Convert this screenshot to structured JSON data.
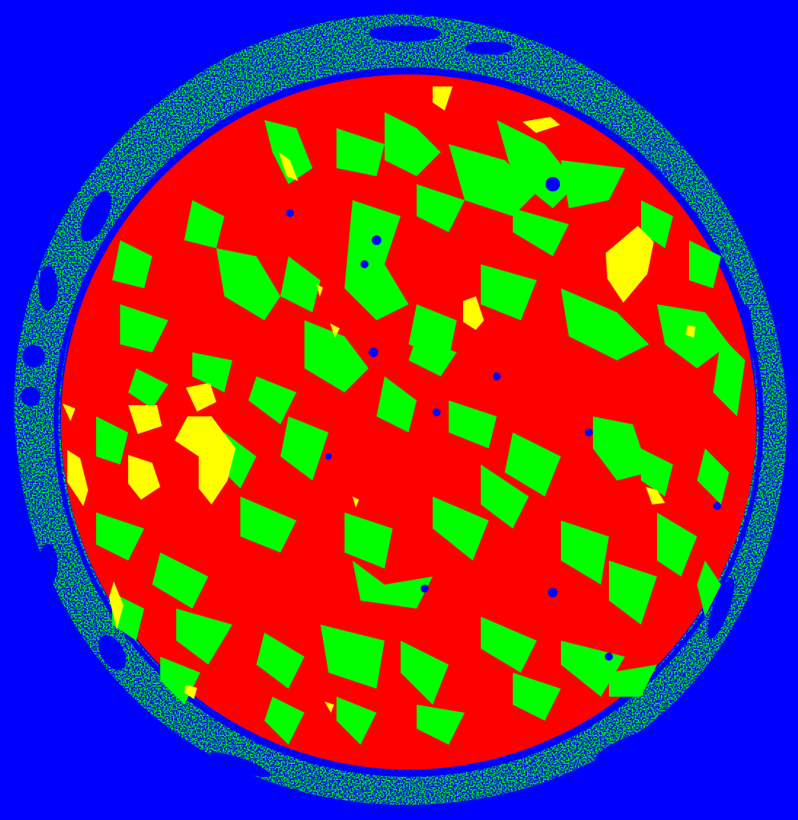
{
  "image": {
    "kind": "segmented micro-CT cross-section (false color)",
    "palette": {
      "background": "#0000ff",
      "shell": "#00ff00",
      "grain": "#ff0000",
      "inclusion": "#ffff00",
      "pore": "#0000ff"
    }
  }
}
